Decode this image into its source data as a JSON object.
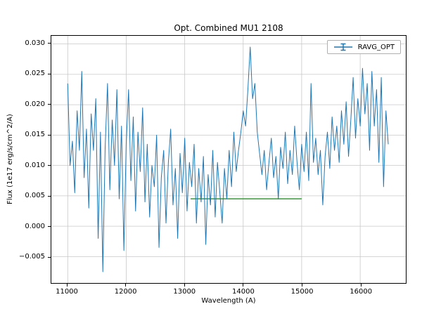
{
  "chart_data": {
    "type": "line",
    "title": "Opt. Combined MU1 2108",
    "xlabel": "Wavelength (A)",
    "ylabel": "Flux (1e17 erg/s/cm^2/A)",
    "xlim": [
      10725,
      16775
    ],
    "ylim": [
      -0.00935,
      0.03135
    ],
    "grid": true,
    "grid_color": "#c8c8c8",
    "legend_position": "upper right",
    "x_ticks": [
      11000,
      12000,
      13000,
      14000,
      15000,
      16000
    ],
    "x_tick_labels": [
      "11000",
      "12000",
      "13000",
      "14000",
      "15000",
      "16000"
    ],
    "y_ticks": [
      -0.005,
      0.0,
      0.005,
      0.01,
      0.015,
      0.02,
      0.025,
      0.03
    ],
    "y_tick_labels": [
      "−0.005",
      "0.000",
      "0.005",
      "0.010",
      "0.015",
      "0.020",
      "0.025",
      "0.030"
    ],
    "series": [
      {
        "name": "RAVG_OPT",
        "color": "#1f77b4",
        "marker": "errorbar",
        "x_start": 11000,
        "x_step": 40,
        "x_end": 16480,
        "y": [
          0.0235,
          0.01,
          0.014,
          0.0055,
          0.019,
          0.0125,
          0.0255,
          0.008,
          0.016,
          0.003,
          0.0185,
          0.0125,
          0.021,
          -0.002,
          0.0155,
          -0.0075,
          0.013,
          0.0235,
          0.006,
          0.0175,
          0.01,
          0.0225,
          0.0045,
          0.0165,
          -0.004,
          0.0135,
          0.0225,
          0.0075,
          0.018,
          0.0025,
          0.0155,
          0.009,
          0.0195,
          0.004,
          0.0135,
          0.0015,
          0.01,
          0.0065,
          0.015,
          -0.0035,
          0.008,
          0.0125,
          0.0005,
          0.0105,
          0.016,
          0.0035,
          0.0095,
          -0.002,
          0.012,
          0.0055,
          0.0145,
          0.0025,
          0.0105,
          0.0065,
          0.0135,
          0.0005,
          0.0095,
          0.004,
          0.0115,
          -0.003,
          0.0085,
          0.0035,
          0.0125,
          0.0015,
          0.0105,
          0.0055,
          0.0005,
          0.0095,
          0.0045,
          0.0125,
          0.0065,
          0.0155,
          0.009,
          0.0125,
          0.0155,
          0.019,
          0.0165,
          0.0225,
          0.0295,
          0.021,
          0.0235,
          0.0155,
          0.012,
          0.0085,
          0.0125,
          0.006,
          0.0105,
          0.0145,
          0.008,
          0.0115,
          0.0045,
          0.013,
          0.0095,
          0.0155,
          0.007,
          0.0125,
          0.0085,
          0.0165,
          0.0105,
          0.006,
          0.0135,
          0.009,
          0.0155,
          0.0075,
          0.0235,
          0.0105,
          0.0145,
          0.0085,
          0.0125,
          0.0035,
          0.0115,
          0.0155,
          0.0095,
          0.018,
          0.0125,
          0.0165,
          0.0105,
          0.019,
          0.0135,
          0.0205,
          0.0115,
          0.0175,
          0.0245,
          0.0145,
          0.021,
          0.0165,
          0.026,
          0.0185,
          0.0235,
          0.0125,
          0.0255,
          0.0165,
          0.0225,
          0.0105,
          0.0245,
          0.0065,
          0.019,
          0.0135
        ]
      }
    ],
    "overlays": [
      {
        "name": "baseline-segment",
        "type": "hline-segment",
        "color": "#2ca02c",
        "x1": 13100,
        "x2": 15000,
        "y": 0.0045
      }
    ]
  },
  "legend": {
    "items": [
      {
        "label": "RAVG_OPT",
        "color": "#1f77b4",
        "marker": "errorbar"
      }
    ]
  }
}
